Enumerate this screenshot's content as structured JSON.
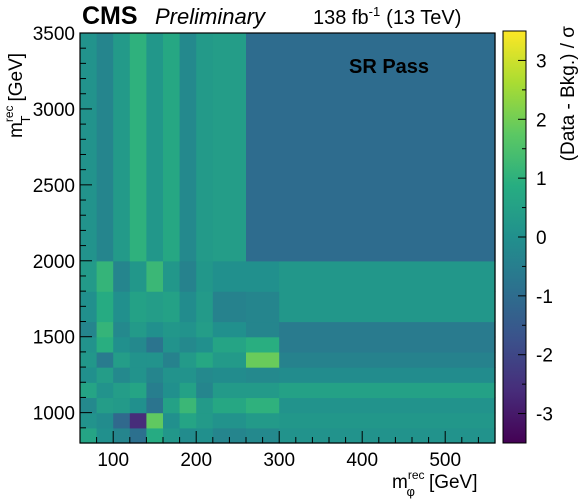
{
  "header": {
    "experiment": "CMS",
    "status": "Preliminary",
    "lumi": "138 fb",
    "lumi_exp": "-1",
    "energy": "(13 TeV)"
  },
  "colors": {
    "palette": [
      "#440154",
      "#472c7a",
      "#3b518b",
      "#2c718e",
      "#21908d",
      "#27ad81",
      "#5cc863",
      "#aadc32",
      "#fde725"
    ]
  },
  "chart_data": {
    "type": "heatmap",
    "title": "",
    "region_label": "SR Pass",
    "xlabel": "m",
    "xlabel_sub": "φ",
    "xlabel_sup": "rec",
    "xlabel_unit": "[GeV]",
    "ylabel": "m",
    "ylabel_sub": "T",
    "ylabel_sup": "rec",
    "ylabel_unit": "[GeV]",
    "colorbar_label": "(Data - Bkg.) / σ",
    "xlim": [
      60,
      560
    ],
    "ylim": [
      800,
      3500
    ],
    "zlim": [
      -3.5,
      3.5
    ],
    "x_ticks": [
      100,
      200,
      300,
      400,
      500
    ],
    "y_ticks": [
      1000,
      1500,
      2000,
      2500,
      3000,
      3500
    ],
    "z_ticks": [
      -3,
      -2,
      -1,
      0,
      1,
      2,
      3
    ],
    "x_edges": [
      60,
      80,
      100,
      120,
      140,
      160,
      180,
      200,
      220,
      260,
      300,
      560
    ],
    "y_edges": [
      800,
      900,
      1000,
      1100,
      1200,
      1300,
      1400,
      1500,
      1600,
      1800,
      2000,
      3500
    ],
    "z": [
      [
        0.6,
        0.0,
        -0.3,
        -0.9,
        0.8,
        0.2,
        -0.1,
        0.0,
        -0.3,
        -0.2,
        0.1
      ],
      [
        0.1,
        -0.1,
        -1.1,
        -2.6,
        1.8,
        0.0,
        0.6,
        0.3,
        0.1,
        0.3,
        0.2
      ],
      [
        -0.2,
        0.4,
        0.3,
        0.0,
        -0.8,
        0.5,
        1.2,
        0.3,
        0.7,
        1.0,
        0.1
      ],
      [
        0.6,
        0.1,
        0.4,
        0.6,
        -0.5,
        0.0,
        0.5,
        -0.3,
        0.3,
        0.3,
        0.5
      ],
      [
        0.0,
        0.4,
        -0.2,
        0.1,
        -0.3,
        0.1,
        0.1,
        -0.2,
        -0.1,
        -0.2,
        -0.1
      ],
      [
        0.2,
        -0.6,
        0.4,
        0.1,
        0.1,
        -0.4,
        0.3,
        0.7,
        0.3,
        1.9,
        -0.4
      ],
      [
        0.1,
        0.9,
        0.0,
        -0.2,
        -0.8,
        0.1,
        -0.2,
        0.0,
        0.6,
        0.9,
        -0.6
      ],
      [
        -0.3,
        1.1,
        -0.2,
        0.3,
        0.0,
        0.2,
        0.1,
        0.4,
        0.0,
        -0.3,
        -0.6
      ],
      [
        0.0,
        0.8,
        0.0,
        0.5,
        0.4,
        0.5,
        -0.1,
        0.3,
        -0.4,
        -0.3,
        0.2
      ],
      [
        0.3,
        1.1,
        -0.3,
        0.2,
        1.2,
        0.2,
        -0.4,
        0.2,
        0.0,
        0.0,
        0.2
      ],
      [
        0.1,
        -0.3,
        0.3,
        1.0,
        0.2,
        0.7,
        -0.2,
        0.3,
        0.4,
        -1.0,
        -1.0
      ]
    ]
  }
}
